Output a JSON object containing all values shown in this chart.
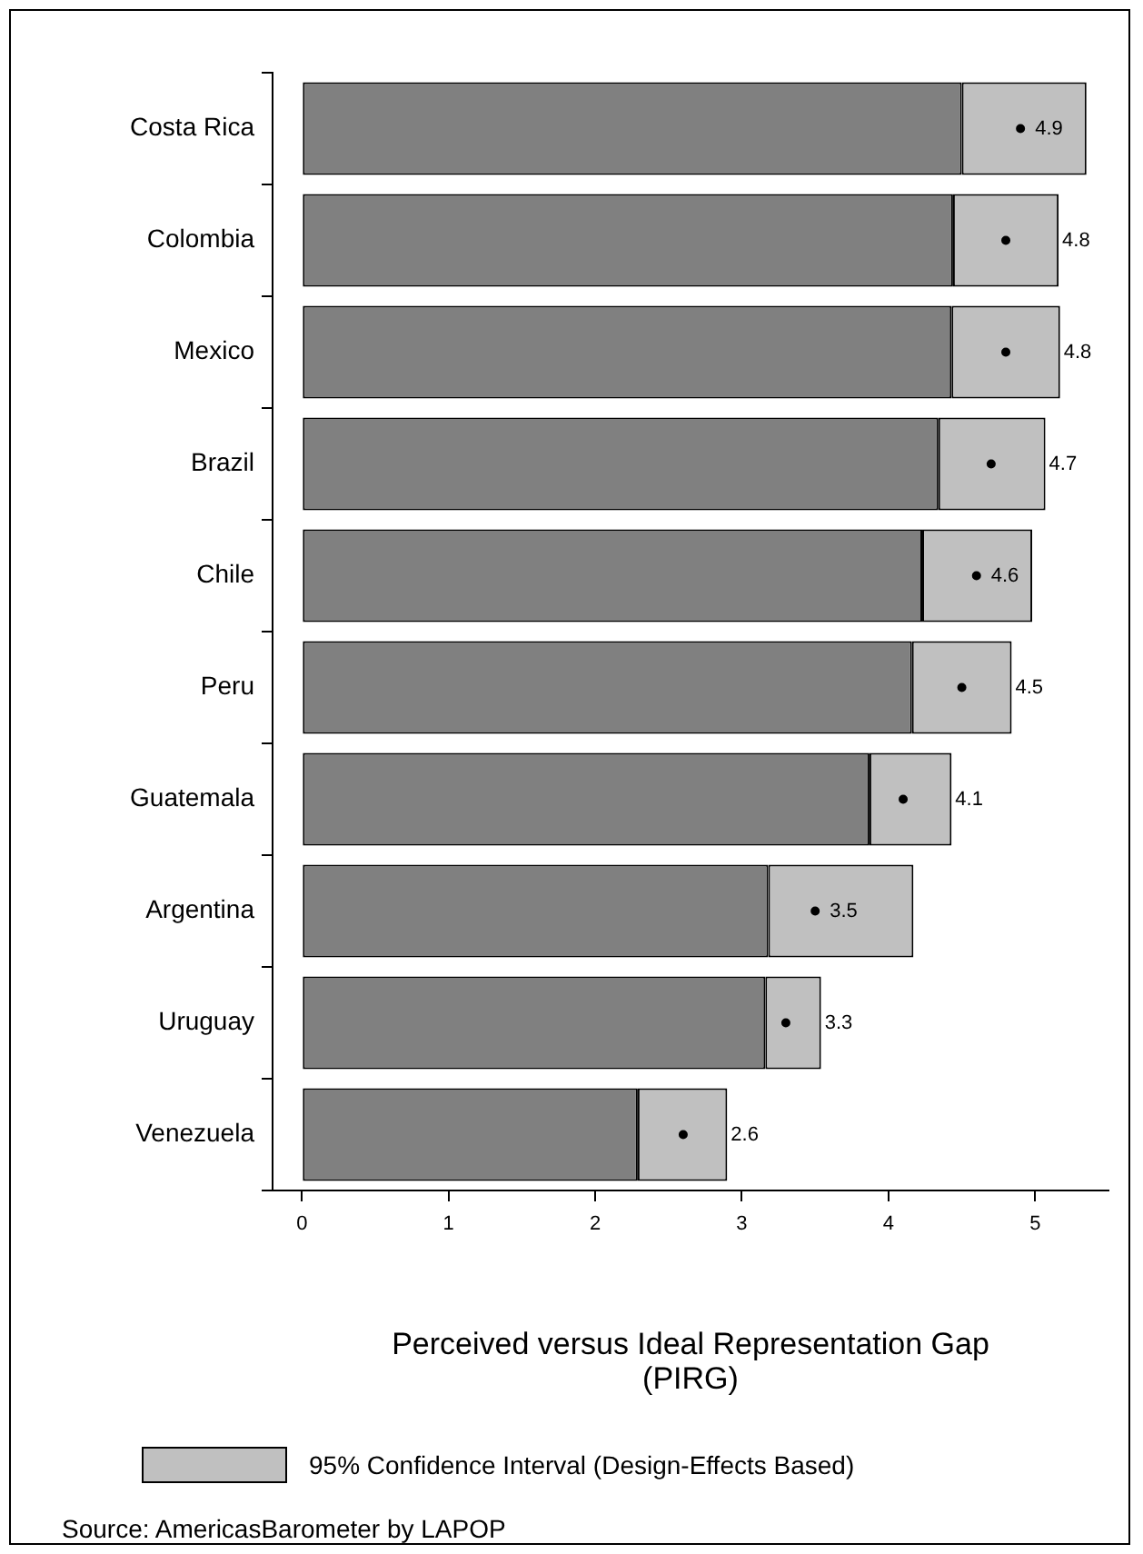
{
  "chart_data": {
    "type": "bar",
    "orientation": "horizontal",
    "stacked": true,
    "categories": [
      "Costa Rica",
      "Colombia",
      "Mexico",
      "Brazil",
      "Chile",
      "Peru",
      "Guatemala",
      "Argentina",
      "Uruguay",
      "Venezuela"
    ],
    "series": [
      {
        "color": "#808080",
        "values": [
          4.5,
          4.44,
          4.43,
          4.34,
          4.23,
          4.16,
          3.87,
          3.18,
          3.16,
          2.29
        ]
      },
      {
        "name": "95% Confidence Interval (Design-Effects Based)",
        "color": "#c0c0c0",
        "values": [
          0.85,
          0.72,
          0.74,
          0.73,
          0.75,
          0.68,
          0.56,
          0.99,
          0.38,
          0.61
        ]
      },
      {
        "type": "scatter",
        "color": "#000000",
        "values": [
          4.9,
          4.8,
          4.8,
          4.7,
          4.6,
          4.5,
          4.1,
          3.5,
          3.3,
          2.6
        ],
        "value_labels": [
          "4.9",
          "4.8",
          "4.8",
          "4.7",
          "4.6",
          "4.5",
          "4.1",
          "3.5",
          "3.3",
          "2.6"
        ]
      }
    ],
    "xlim": [
      -0.2,
      5.5
    ],
    "xticks": [
      0,
      1,
      2,
      3,
      4,
      5
    ],
    "xlabel": "Perceived versus Ideal Representation Gap (PIRG)",
    "grid": false,
    "legend": "bottom",
    "marker": "circle",
    "annotations": [
      "Source: AmericasBarometer by  LAPOP"
    ]
  }
}
